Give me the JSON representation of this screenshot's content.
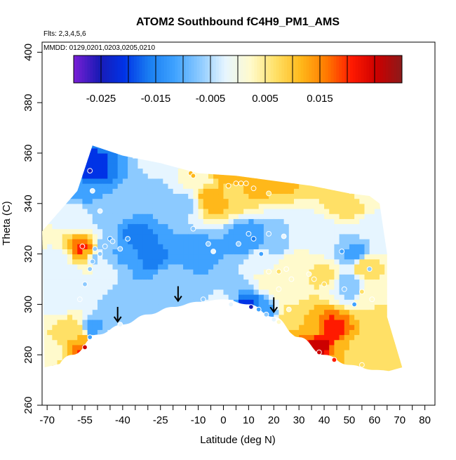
{
  "chart_data": {
    "type": "heatmap",
    "title": "ATOM2 Southbound fC4H9_PM1_AMS",
    "subtitle_flights": "Flts: 2,3,4,5,6",
    "subtitle_dates": "MMDD: 0129,0201,0203,0205,0210",
    "xlabel": "Latitude (deg N)",
    "ylabel": "Theta (C)",
    "xlim": [
      -72,
      84
    ],
    "ylim": [
      260,
      404
    ],
    "x_ticks": [
      -70,
      -55,
      -40,
      -25,
      -10,
      0,
      10,
      20,
      30,
      40,
      50,
      60,
      70,
      80
    ],
    "x_tick_labels": [
      "-70",
      "-55",
      "-40",
      "-25",
      "-10",
      "0",
      "10",
      "20",
      "30",
      "40",
      "50",
      "60",
      "70",
      "80"
    ],
    "x_minor_ticks": [
      -65,
      -60,
      -50,
      -45,
      -35,
      -30,
      -20,
      -15,
      -5,
      5,
      15,
      25,
      35,
      45,
      55,
      65,
      75
    ],
    "y_ticks": [
      260,
      280,
      300,
      320,
      340,
      360,
      380,
      400
    ],
    "y_tick_labels": [
      "260",
      "280",
      "300",
      "320",
      "340",
      "360",
      "380",
      "400"
    ],
    "colorbar": {
      "range": [
        -0.03,
        0.03
      ],
      "bins": [
        -0.03,
        -0.025,
        -0.02,
        -0.015,
        -0.01,
        -0.005,
        0,
        0.005,
        0.01,
        0.015,
        0.02,
        0.025,
        0.03
      ],
      "tick_values": [
        -0.025,
        -0.015,
        -0.005,
        0.005,
        0.015
      ],
      "tick_labels": [
        "-0.025",
        "-0.015",
        "-0.005",
        "0.005",
        "0.015"
      ],
      "colors": [
        "#7a1fd6",
        "#1a1ab5",
        "#0033e6",
        "#1a7ff2",
        "#3fa2ff",
        "#8ccaff",
        "#e6f5ff",
        "#fffacc",
        "#ffe066",
        "#ffb81a",
        "#ff7a00",
        "#ff1a00",
        "#cc0000",
        "#8b1a1a"
      ]
    },
    "arrows_latitude": [
      -42,
      -18,
      20
    ],
    "surface_boundary": [
      [
        -71,
        271
      ],
      [
        -60,
        280
      ],
      [
        -50,
        288
      ],
      [
        -40,
        292
      ],
      [
        -30,
        296
      ],
      [
        -20,
        299
      ],
      [
        -10,
        301
      ],
      [
        0,
        302
      ],
      [
        10,
        300
      ],
      [
        20,
        295
      ],
      [
        30,
        287
      ],
      [
        40,
        280
      ],
      [
        50,
        276
      ],
      [
        60,
        274
      ],
      [
        72,
        273
      ]
    ],
    "outer_boundary": [
      [
        -72,
        329
      ],
      [
        -58,
        345
      ],
      [
        -52,
        363
      ],
      [
        -40,
        359
      ],
      [
        -25,
        356
      ],
      [
        -10,
        352
      ],
      [
        5,
        351
      ],
      [
        20,
        349
      ],
      [
        35,
        347
      ],
      [
        50,
        344
      ],
      [
        58,
        343
      ],
      [
        62,
        340
      ],
      [
        65,
        320
      ],
      [
        65,
        295
      ],
      [
        71,
        275
      ],
      [
        60,
        272
      ],
      [
        40,
        278
      ],
      [
        30,
        286
      ],
      [
        20,
        294
      ],
      [
        10,
        299
      ],
      [
        0,
        301
      ],
      [
        -10,
        300
      ],
      [
        -20,
        298
      ],
      [
        -30,
        295
      ],
      [
        -40,
        291
      ],
      [
        -50,
        286
      ],
      [
        -58,
        278
      ],
      [
        -71,
        275
      ]
    ],
    "field_points": [
      {
        "x": -56,
        "y": 322,
        "v": 0.022
      },
      {
        "x": -55,
        "y": 320,
        "v": 0.012
      },
      {
        "x": -54,
        "y": 318,
        "v": 0.006
      },
      {
        "x": -56,
        "y": 285,
        "v": 0.014
      },
      {
        "x": -54,
        "y": 283,
        "v": 0.026
      },
      {
        "x": -57,
        "y": 289,
        "v": 0.008
      },
      {
        "x": -53,
        "y": 290,
        "v": -0.015
      },
      {
        "x": -52,
        "y": 353,
        "v": -0.022
      },
      {
        "x": -55,
        "y": 345,
        "v": -0.012
      },
      {
        "x": -58,
        "y": 335,
        "v": -0.003
      },
      {
        "x": -48,
        "y": 336,
        "v": -0.006
      },
      {
        "x": -46,
        "y": 323,
        "v": -0.008
      },
      {
        "x": -52,
        "y": 318,
        "v": -0.007
      },
      {
        "x": -40,
        "y": 322,
        "v": -0.012
      },
      {
        "x": -35,
        "y": 326,
        "v": -0.018
      },
      {
        "x": -28,
        "y": 319,
        "v": -0.016
      },
      {
        "x": -20,
        "y": 310,
        "v": -0.006
      },
      {
        "x": -12,
        "y": 320,
        "v": -0.014
      },
      {
        "x": -15,
        "y": 340,
        "v": -0.006
      },
      {
        "x": -8,
        "y": 350,
        "v": 0.004
      },
      {
        "x": 0,
        "y": 352,
        "v": 0.012
      },
      {
        "x": 10,
        "y": 350,
        "v": 0.015
      },
      {
        "x": 25,
        "y": 352,
        "v": 0.012
      },
      {
        "x": 42,
        "y": 350,
        "v": 0.006
      },
      {
        "x": 55,
        "y": 345,
        "v": 0.003
      },
      {
        "x": -5,
        "y": 342,
        "v": 0.013
      },
      {
        "x": 5,
        "y": 345,
        "v": 0.009
      },
      {
        "x": 10,
        "y": 326,
        "v": -0.015
      },
      {
        "x": 20,
        "y": 325,
        "v": -0.008
      },
      {
        "x": 32,
        "y": 328,
        "v": -0.004
      },
      {
        "x": 45,
        "y": 325,
        "v": -0.005
      },
      {
        "x": 52,
        "y": 320,
        "v": -0.012
      },
      {
        "x": 30,
        "y": 315,
        "v": 0.005
      },
      {
        "x": 40,
        "y": 312,
        "v": 0.006
      },
      {
        "x": 50,
        "y": 308,
        "v": -0.008
      },
      {
        "x": 56,
        "y": 315,
        "v": 0.008
      },
      {
        "x": 60,
        "y": 305,
        "v": 0.005
      },
      {
        "x": 62,
        "y": 290,
        "v": 0.007
      },
      {
        "x": 38,
        "y": 284,
        "v": 0.028
      },
      {
        "x": 43,
        "y": 290,
        "v": 0.022
      },
      {
        "x": 35,
        "y": 290,
        "v": 0.014
      },
      {
        "x": 48,
        "y": 282,
        "v": 0.01
      },
      {
        "x": 55,
        "y": 280,
        "v": 0.006
      },
      {
        "x": 28,
        "y": 295,
        "v": 0.008
      },
      {
        "x": 10,
        "y": 298,
        "v": -0.025
      },
      {
        "x": 15,
        "y": 297,
        "v": -0.012
      },
      {
        "x": 0,
        "y": 300,
        "v": -0.004
      },
      {
        "x": -10,
        "y": 302,
        "v": -0.005
      },
      {
        "x": -30,
        "y": 300,
        "v": -0.01
      },
      {
        "x": -40,
        "y": 298,
        "v": -0.01
      },
      {
        "x": -65,
        "y": 300,
        "v": -0.004
      },
      {
        "x": -65,
        "y": 318,
        "v": -0.002
      },
      {
        "x": -68,
        "y": 282,
        "v": 0.004
      },
      {
        "x": -62,
        "y": 292,
        "v": 0.006
      },
      {
        "x": -60,
        "y": 312,
        "v": -0.003
      },
      {
        "x": 20,
        "y": 310,
        "v": 0.004
      },
      {
        "x": 15,
        "y": 318,
        "v": -0.003
      },
      {
        "x": 25,
        "y": 305,
        "v": 0.003
      },
      {
        "x": 60,
        "y": 330,
        "v": -0.004
      },
      {
        "x": 50,
        "y": 340,
        "v": 0.008
      },
      {
        "x": -30,
        "y": 345,
        "v": -0.009
      },
      {
        "x": -40,
        "y": 340,
        "v": -0.009
      },
      {
        "x": -25,
        "y": 355,
        "v": -0.002
      }
    ],
    "sample_points": [
      {
        "x": -53,
        "y": 353,
        "v": -0.028
      },
      {
        "x": -52,
        "y": 345,
        "v": -0.005
      },
      {
        "x": -49,
        "y": 337,
        "v": -0.004
      },
      {
        "x": -56,
        "y": 323,
        "v": 0.024
      },
      {
        "x": -51,
        "y": 322,
        "v": -0.006
      },
      {
        "x": -49,
        "y": 320,
        "v": -0.006
      },
      {
        "x": -47,
        "y": 323,
        "v": -0.01
      },
      {
        "x": -45,
        "y": 326,
        "v": -0.012
      },
      {
        "x": -44,
        "y": 325,
        "v": -0.008
      },
      {
        "x": -41,
        "y": 322,
        "v": -0.006
      },
      {
        "x": -38,
        "y": 326,
        "v": -0.012
      },
      {
        "x": -52,
        "y": 317,
        "v": -0.008
      },
      {
        "x": -53,
        "y": 314,
        "v": -0.006
      },
      {
        "x": -55,
        "y": 308,
        "v": -0.006
      },
      {
        "x": -53,
        "y": 287,
        "v": -0.015
      },
      {
        "x": -55,
        "y": 283,
        "v": 0.026
      },
      {
        "x": -57,
        "y": 302,
        "v": -0.004
      },
      {
        "x": -41,
        "y": 292,
        "v": -0.004
      },
      {
        "x": -8,
        "y": 302,
        "v": -0.006
      },
      {
        "x": -12,
        "y": 330,
        "v": -0.008
      },
      {
        "x": -13,
        "y": 352,
        "v": 0.012
      },
      {
        "x": -12,
        "y": 351,
        "v": 0.013
      },
      {
        "x": -4,
        "y": 321,
        "v": -0.005
      },
      {
        "x": 5,
        "y": 348,
        "v": 0.012
      },
      {
        "x": 7,
        "y": 348,
        "v": 0.012
      },
      {
        "x": 2,
        "y": 347,
        "v": 0.014
      },
      {
        "x": 12,
        "y": 346,
        "v": 0.01
      },
      {
        "x": 18,
        "y": 344,
        "v": 0.008
      },
      {
        "x": 10,
        "y": 328,
        "v": -0.012
      },
      {
        "x": 12,
        "y": 326,
        "v": -0.018
      },
      {
        "x": 6,
        "y": 324,
        "v": -0.006
      },
      {
        "x": 18,
        "y": 328,
        "v": -0.008
      },
      {
        "x": 24,
        "y": 327,
        "v": -0.004
      },
      {
        "x": 15,
        "y": 320,
        "v": -0.012
      },
      {
        "x": 18,
        "y": 313,
        "v": 0.004
      },
      {
        "x": 22,
        "y": 313,
        "v": 0.005
      },
      {
        "x": 25,
        "y": 314,
        "v": 0.004
      },
      {
        "x": 27,
        "y": 310,
        "v": 0.004
      },
      {
        "x": 22,
        "y": 306,
        "v": 0.003
      },
      {
        "x": 34,
        "y": 312,
        "v": 0.004
      },
      {
        "x": 36,
        "y": 310,
        "v": 0.006
      },
      {
        "x": 40,
        "y": 308,
        "v": 0.006
      },
      {
        "x": 47,
        "y": 321,
        "v": -0.015
      },
      {
        "x": 48,
        "y": 306,
        "v": -0.008
      },
      {
        "x": 52,
        "y": 300,
        "v": -0.012
      },
      {
        "x": 55,
        "y": 305,
        "v": 0.006
      },
      {
        "x": 58,
        "y": 314,
        "v": -0.006
      },
      {
        "x": 59,
        "y": 302,
        "v": 0.004
      },
      {
        "x": 11,
        "y": 299,
        "v": -0.028
      },
      {
        "x": 14,
        "y": 298,
        "v": -0.014
      },
      {
        "x": 17,
        "y": 296,
        "v": -0.01
      },
      {
        "x": 20,
        "y": 294,
        "v": -0.004
      },
      {
        "x": 22,
        "y": 293,
        "v": 0.004
      },
      {
        "x": 38,
        "y": 281,
        "v": 0.028
      },
      {
        "x": 44,
        "y": 278,
        "v": 0.022
      },
      {
        "x": 55,
        "y": 276,
        "v": 0.008
      },
      {
        "x": 3,
        "y": 300,
        "v": -0.004
      },
      {
        "x": -6,
        "y": 324,
        "v": -0.008
      },
      {
        "x": 9,
        "y": 348,
        "v": 0.011
      },
      {
        "x": 26,
        "y": 298,
        "v": 0.004
      }
    ]
  }
}
